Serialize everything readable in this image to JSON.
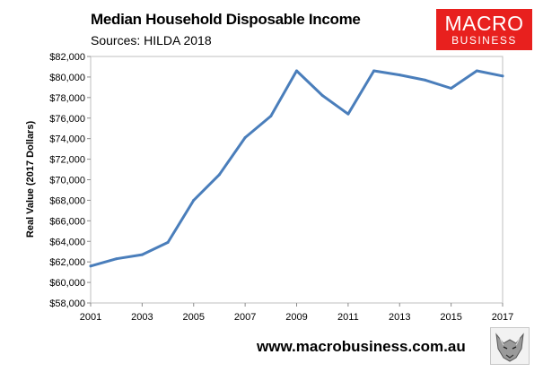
{
  "header": {
    "title": "Median Household Disposable Income",
    "subtitle": "Sources: HILDA 2018"
  },
  "logo": {
    "line1": "MACRO",
    "line2": "BUSINESS",
    "color": "#e8201e"
  },
  "footer": {
    "url": "www.macrobusiness.com.au",
    "badge_icon": "wolf-head-icon"
  },
  "chart_data": {
    "type": "line",
    "title": "Median Household Disposable Income",
    "subtitle": "Sources: HILDA 2018",
    "xlabel": "",
    "ylabel": "Real Value (2017 Dollars)",
    "x": [
      2001,
      2002,
      2003,
      2004,
      2005,
      2006,
      2007,
      2008,
      2009,
      2010,
      2011,
      2012,
      2013,
      2014,
      2015,
      2016,
      2017
    ],
    "series": [
      {
        "name": "",
        "color": "#4a7ebb",
        "values": [
          61600,
          62300,
          62700,
          63900,
          68000,
          70500,
          74100,
          76200,
          80600,
          78200,
          76400,
          80600,
          80200,
          79700,
          78900,
          80600,
          80100
        ]
      }
    ],
    "xlim": [
      2001,
      2017
    ],
    "ylim": [
      58000,
      82000
    ],
    "x_ticks": [
      2001,
      2003,
      2005,
      2007,
      2009,
      2011,
      2013,
      2015,
      2017
    ],
    "x_tick_labels": [
      "2001",
      "2003",
      "2005",
      "2007",
      "2009",
      "2011",
      "2013",
      "2015",
      "2017"
    ],
    "y_ticks": [
      58000,
      60000,
      62000,
      64000,
      66000,
      68000,
      70000,
      72000,
      74000,
      76000,
      78000,
      80000,
      82000
    ],
    "y_tick_labels": [
      "$58,000",
      "$60,000",
      "$62,000",
      "$64,000",
      "$66,000",
      "$68,000",
      "$70,000",
      "$72,000",
      "$74,000",
      "$76,000",
      "$78,000",
      "$80,000",
      "$82,000"
    ],
    "grid": false,
    "legend": "none"
  }
}
